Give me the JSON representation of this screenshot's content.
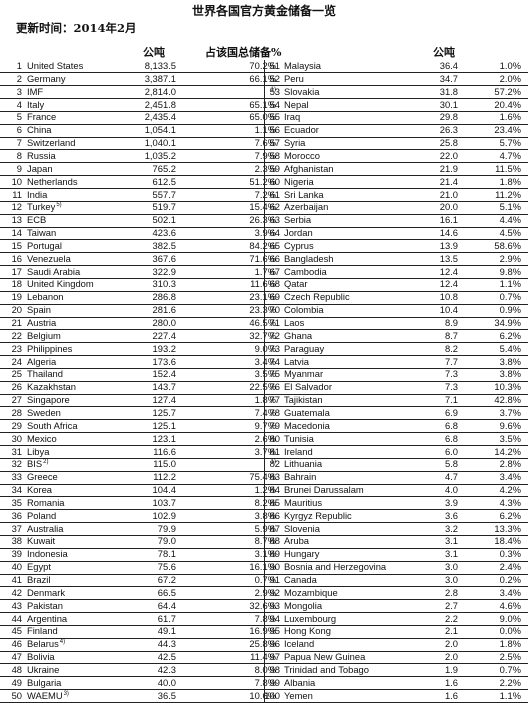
{
  "title": "世界各国官方黄金储备一览",
  "update": "更新时间：2014年2月",
  "headers": {
    "tonnes": "公吨",
    "pct": "占该国总储备%",
    "tonnes_right": "公吨"
  },
  "rows": [
    {
      "rank": "1",
      "name": "United States",
      "sup": "",
      "tonnes": "8,133.5",
      "pct": "70.2%"
    },
    {
      "rank": "2",
      "name": "Germany",
      "sup": "",
      "tonnes": "3,387.1",
      "pct": "66.1%"
    },
    {
      "rank": "3",
      "name": "IMF",
      "sup": "",
      "tonnes": "2,814.0",
      "pct": "1)"
    },
    {
      "rank": "4",
      "name": "Italy",
      "sup": "",
      "tonnes": "2,451.8",
      "pct": "65.1%"
    },
    {
      "rank": "5",
      "name": "France",
      "sup": "",
      "tonnes": "2,435.4",
      "pct": "65.0%"
    },
    {
      "rank": "6",
      "name": "China",
      "sup": "",
      "tonnes": "1,054.1",
      "pct": "1.1%"
    },
    {
      "rank": "7",
      "name": "Switzerland",
      "sup": "",
      "tonnes": "1,040.1",
      "pct": "7.6%"
    },
    {
      "rank": "8",
      "name": "Russia",
      "sup": "",
      "tonnes": "1,035.2",
      "pct": "7.9%"
    },
    {
      "rank": "9",
      "name": "Japan",
      "sup": "",
      "tonnes": "765.2",
      "pct": "2.3%"
    },
    {
      "rank": "10",
      "name": "Netherlands",
      "sup": "",
      "tonnes": "612.5",
      "pct": "51.2%"
    },
    {
      "rank": "11",
      "name": "India",
      "sup": "",
      "tonnes": "557.7",
      "pct": "7.2%"
    },
    {
      "rank": "12",
      "name": "Turkey",
      "sup": "5)",
      "tonnes": "519.7",
      "pct": "15.4%"
    },
    {
      "rank": "13",
      "name": "ECB",
      "sup": "",
      "tonnes": "502.1",
      "pct": "26.3%"
    },
    {
      "rank": "14",
      "name": "Taiwan",
      "sup": "",
      "tonnes": "423.6",
      "pct": "3.9%"
    },
    {
      "rank": "15",
      "name": "Portugal",
      "sup": "",
      "tonnes": "382.5",
      "pct": "84.2%"
    },
    {
      "rank": "16",
      "name": "Venezuela",
      "sup": "",
      "tonnes": "367.6",
      "pct": "71.6%"
    },
    {
      "rank": "17",
      "name": "Saudi Arabia",
      "sup": "",
      "tonnes": "322.9",
      "pct": "1.7%"
    },
    {
      "rank": "18",
      "name": "United Kingdom",
      "sup": "",
      "tonnes": "310.3",
      "pct": "11.6%"
    },
    {
      "rank": "19",
      "name": "Lebanon",
      "sup": "",
      "tonnes": "286.8",
      "pct": "23.1%"
    },
    {
      "rank": "20",
      "name": "Spain",
      "sup": "",
      "tonnes": "281.6",
      "pct": "23.3%"
    },
    {
      "rank": "21",
      "name": "Austria",
      "sup": "",
      "tonnes": "280.0",
      "pct": "46.5%"
    },
    {
      "rank": "22",
      "name": "Belgium",
      "sup": "",
      "tonnes": "227.4",
      "pct": "32.7%"
    },
    {
      "rank": "23",
      "name": "Philippines",
      "sup": "",
      "tonnes": "193.2",
      "pct": "9.0%"
    },
    {
      "rank": "24",
      "name": "Algeria",
      "sup": "",
      "tonnes": "173.6",
      "pct": "3.4%"
    },
    {
      "rank": "25",
      "name": "Thailand",
      "sup": "",
      "tonnes": "152.4",
      "pct": "3.5%"
    },
    {
      "rank": "26",
      "name": "Kazakhstan",
      "sup": "",
      "tonnes": "143.7",
      "pct": "22.5%"
    },
    {
      "rank": "27",
      "name": "Singapore",
      "sup": "",
      "tonnes": "127.4",
      "pct": "1.8%"
    },
    {
      "rank": "28",
      "name": "Sweden",
      "sup": "",
      "tonnes": "125.7",
      "pct": "7.4%"
    },
    {
      "rank": "29",
      "name": "South Africa",
      "sup": "",
      "tonnes": "125.1",
      "pct": "9.7%"
    },
    {
      "rank": "30",
      "name": "Mexico",
      "sup": "",
      "tonnes": "123.1",
      "pct": "2.6%"
    },
    {
      "rank": "31",
      "name": "Libya",
      "sup": "",
      "tonnes": "116.6",
      "pct": "3.7%"
    },
    {
      "rank": "32",
      "name": "BIS",
      "sup": "2)",
      "tonnes": "115.0",
      "pct": "1)"
    },
    {
      "rank": "33",
      "name": "Greece",
      "sup": "",
      "tonnes": "112.2",
      "pct": "75.4%"
    },
    {
      "rank": "34",
      "name": "Korea",
      "sup": "",
      "tonnes": "104.4",
      "pct": "1.2%"
    },
    {
      "rank": "35",
      "name": "Romania",
      "sup": "",
      "tonnes": "103.7",
      "pct": "8.2%"
    },
    {
      "rank": "36",
      "name": "Poland",
      "sup": "",
      "tonnes": "102.9",
      "pct": "3.8%"
    },
    {
      "rank": "37",
      "name": "Australia",
      "sup": "",
      "tonnes": "79.9",
      "pct": "5.9%"
    },
    {
      "rank": "38",
      "name": "Kuwait",
      "sup": "",
      "tonnes": "79.0",
      "pct": "8.7%"
    },
    {
      "rank": "39",
      "name": "Indonesia",
      "sup": "",
      "tonnes": "78.1",
      "pct": "3.1%"
    },
    {
      "rank": "40",
      "name": "Egypt",
      "sup": "",
      "tonnes": "75.6",
      "pct": "16.1%"
    },
    {
      "rank": "41",
      "name": "Brazil",
      "sup": "",
      "tonnes": "67.2",
      "pct": "0.7%"
    },
    {
      "rank": "42",
      "name": "Denmark",
      "sup": "",
      "tonnes": "66.5",
      "pct": "2.9%"
    },
    {
      "rank": "43",
      "name": "Pakistan",
      "sup": "",
      "tonnes": "64.4",
      "pct": "32.6%"
    },
    {
      "rank": "44",
      "name": "Argentina",
      "sup": "",
      "tonnes": "61.7",
      "pct": "7.8%"
    },
    {
      "rank": "45",
      "name": "Finland",
      "sup": "",
      "tonnes": "49.1",
      "pct": "16.9%"
    },
    {
      "rank": "46",
      "name": "Belarus",
      "sup": "4)",
      "tonnes": "44.3",
      "pct": "25.8%"
    },
    {
      "rank": "47",
      "name": "Bolivia",
      "sup": "",
      "tonnes": "42.5",
      "pct": "11.4%"
    },
    {
      "rank": "48",
      "name": "Ukraine",
      "sup": "",
      "tonnes": "42.3",
      "pct": "8.0%"
    },
    {
      "rank": "49",
      "name": "Bulgaria",
      "sup": "",
      "tonnes": "40.0",
      "pct": "7.8%"
    },
    {
      "rank": "50",
      "name": "WAEMU",
      "sup": "3)",
      "tonnes": "36.5",
      "pct": "10.6%"
    },
    {
      "rank": "51",
      "name": "Malaysia",
      "sup": "",
      "tonnes": "36.4",
      "pct": "1.0%"
    },
    {
      "rank": "52",
      "name": "Peru",
      "sup": "",
      "tonnes": "34.7",
      "pct": "2.0%"
    },
    {
      "rank": "53",
      "name": "Slovakia",
      "sup": "",
      "tonnes": "31.8",
      "pct": "57.2%"
    },
    {
      "rank": "54",
      "name": "Nepal",
      "sup": "",
      "tonnes": "30.1",
      "pct": "20.4%"
    },
    {
      "rank": "55",
      "name": "Iraq",
      "sup": "",
      "tonnes": "29.8",
      "pct": "1.6%"
    },
    {
      "rank": "56",
      "name": "Ecuador",
      "sup": "",
      "tonnes": "26.3",
      "pct": "23.4%"
    },
    {
      "rank": "57",
      "name": "Syria",
      "sup": "",
      "tonnes": "25.8",
      "pct": "5.7%"
    },
    {
      "rank": "58",
      "name": "Morocco",
      "sup": "",
      "tonnes": "22.0",
      "pct": "4.7%"
    },
    {
      "rank": "59",
      "name": "Afghanistan",
      "sup": "",
      "tonnes": "21.9",
      "pct": "11.5%"
    },
    {
      "rank": "60",
      "name": "Nigeria",
      "sup": "",
      "tonnes": "21.4",
      "pct": "1.8%"
    },
    {
      "rank": "61",
      "name": "Sri Lanka",
      "sup": "",
      "tonnes": "21.0",
      "pct": "11.2%"
    },
    {
      "rank": "62",
      "name": "Azerbaijan",
      "sup": "",
      "tonnes": "20.0",
      "pct": "5.1%"
    },
    {
      "rank": "63",
      "name": "Serbia",
      "sup": "",
      "tonnes": "16.1",
      "pct": "4.4%"
    },
    {
      "rank": "64",
      "name": "Jordan",
      "sup": "",
      "tonnes": "14.6",
      "pct": "4.5%"
    },
    {
      "rank": "65",
      "name": "Cyprus",
      "sup": "",
      "tonnes": "13.9",
      "pct": "58.6%"
    },
    {
      "rank": "66",
      "name": "Bangladesh",
      "sup": "",
      "tonnes": "13.5",
      "pct": "2.9%"
    },
    {
      "rank": "67",
      "name": "Cambodia",
      "sup": "",
      "tonnes": "12.4",
      "pct": "9.8%"
    },
    {
      "rank": "68",
      "name": "Qatar",
      "sup": "",
      "tonnes": "12.4",
      "pct": "1.1%"
    },
    {
      "rank": "69",
      "name": "Czech Republic",
      "sup": "",
      "tonnes": "10.8",
      "pct": "0.7%"
    },
    {
      "rank": "70",
      "name": "Colombia",
      "sup": "",
      "tonnes": "10.4",
      "pct": "0.9%"
    },
    {
      "rank": "71",
      "name": "Laos",
      "sup": "",
      "tonnes": "8.9",
      "pct": "34.9%"
    },
    {
      "rank": "72",
      "name": "Ghana",
      "sup": "",
      "tonnes": "8.7",
      "pct": "6.2%"
    },
    {
      "rank": "73",
      "name": "Paraguay",
      "sup": "",
      "tonnes": "8.2",
      "pct": "5.4%"
    },
    {
      "rank": "74",
      "name": "Latvia",
      "sup": "",
      "tonnes": "7.7",
      "pct": "3.8%"
    },
    {
      "rank": "75",
      "name": "Myanmar",
      "sup": "",
      "tonnes": "7.3",
      "pct": "3.8%"
    },
    {
      "rank": "76",
      "name": "El Salvador",
      "sup": "",
      "tonnes": "7.3",
      "pct": "10.3%"
    },
    {
      "rank": "77",
      "name": "Tajikistan",
      "sup": "",
      "tonnes": "7.1",
      "pct": "42.8%"
    },
    {
      "rank": "78",
      "name": "Guatemala",
      "sup": "",
      "tonnes": "6.9",
      "pct": "3.7%"
    },
    {
      "rank": "79",
      "name": "Macedonia",
      "sup": "",
      "tonnes": "6.8",
      "pct": "9.6%"
    },
    {
      "rank": "80",
      "name": "Tunisia",
      "sup": "",
      "tonnes": "6.8",
      "pct": "3.5%"
    },
    {
      "rank": "81",
      "name": "Ireland",
      "sup": "",
      "tonnes": "6.0",
      "pct": "14.2%"
    },
    {
      "rank": "82",
      "name": "Lithuania",
      "sup": "",
      "tonnes": "5.8",
      "pct": "2.8%"
    },
    {
      "rank": "83",
      "name": "Bahrain",
      "sup": "",
      "tonnes": "4.7",
      "pct": "3.4%"
    },
    {
      "rank": "84",
      "name": "Brunei Darussalam",
      "sup": "",
      "tonnes": "4.0",
      "pct": "4.2%"
    },
    {
      "rank": "85",
      "name": "Mauritius",
      "sup": "",
      "tonnes": "3.9",
      "pct": "4.3%"
    },
    {
      "rank": "86",
      "name": "Kyrgyz Republic",
      "sup": "",
      "tonnes": "3.6",
      "pct": "6.2%"
    },
    {
      "rank": "87",
      "name": "Slovenia",
      "sup": "",
      "tonnes": "3.2",
      "pct": "13.3%"
    },
    {
      "rank": "88",
      "name": "Aruba",
      "sup": "",
      "tonnes": "3.1",
      "pct": "18.4%"
    },
    {
      "rank": "89",
      "name": "Hungary",
      "sup": "",
      "tonnes": "3.1",
      "pct": "0.3%"
    },
    {
      "rank": "90",
      "name": "Bosnia and Herzegovina",
      "sup": "",
      "tonnes": "3.0",
      "pct": "2.4%"
    },
    {
      "rank": "91",
      "name": "Canada",
      "sup": "",
      "tonnes": "3.0",
      "pct": "0.2%"
    },
    {
      "rank": "92",
      "name": "Mozambique",
      "sup": "",
      "tonnes": "2.8",
      "pct": "3.4%"
    },
    {
      "rank": "93",
      "name": "Mongolia",
      "sup": "",
      "tonnes": "2.7",
      "pct": "4.6%"
    },
    {
      "rank": "94",
      "name": "Luxembourg",
      "sup": "",
      "tonnes": "2.2",
      "pct": "9.0%"
    },
    {
      "rank": "95",
      "name": "Hong Kong",
      "sup": "",
      "tonnes": "2.1",
      "pct": "0.0%"
    },
    {
      "rank": "96",
      "name": "Iceland",
      "sup": "",
      "tonnes": "2.0",
      "pct": "1.8%"
    },
    {
      "rank": "97",
      "name": "Papua New Guinea",
      "sup": "",
      "tonnes": "2.0",
      "pct": "2.5%"
    },
    {
      "rank": "98",
      "name": "Trinidad and Tobago",
      "sup": "",
      "tonnes": "1.9",
      "pct": "0.7%"
    },
    {
      "rank": "99",
      "name": "Albania",
      "sup": "",
      "tonnes": "1.6",
      "pct": "2.2%"
    },
    {
      "rank": "100",
      "name": "Yemen",
      "sup": "",
      "tonnes": "1.6",
      "pct": "1.1%"
    }
  ]
}
